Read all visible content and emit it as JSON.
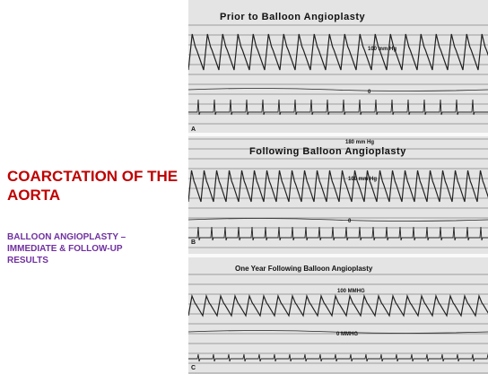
{
  "slide": {
    "title": "COARCTATION OF THE AORTA",
    "subtitle": "BALLOON ANGIOPLASTY – IMMEDIATE & FOLLOW-UP RESULTS"
  },
  "tracings": [
    {
      "heading": "Prior to Balloon Angioplasty",
      "scale_high": "100 mm Hg",
      "scale_low": "0",
      "panel": "A"
    },
    {
      "top_label": "180 mm Hg",
      "heading": "Following Balloon Angioplasty",
      "scale_high": "100 mm Hg",
      "scale_low": "0",
      "panel": "B"
    },
    {
      "heading": "One Year Following Balloon Angioplasty",
      "scale_high": "100 MMHG",
      "scale_low": "0 MMHG",
      "panel": "C"
    }
  ]
}
